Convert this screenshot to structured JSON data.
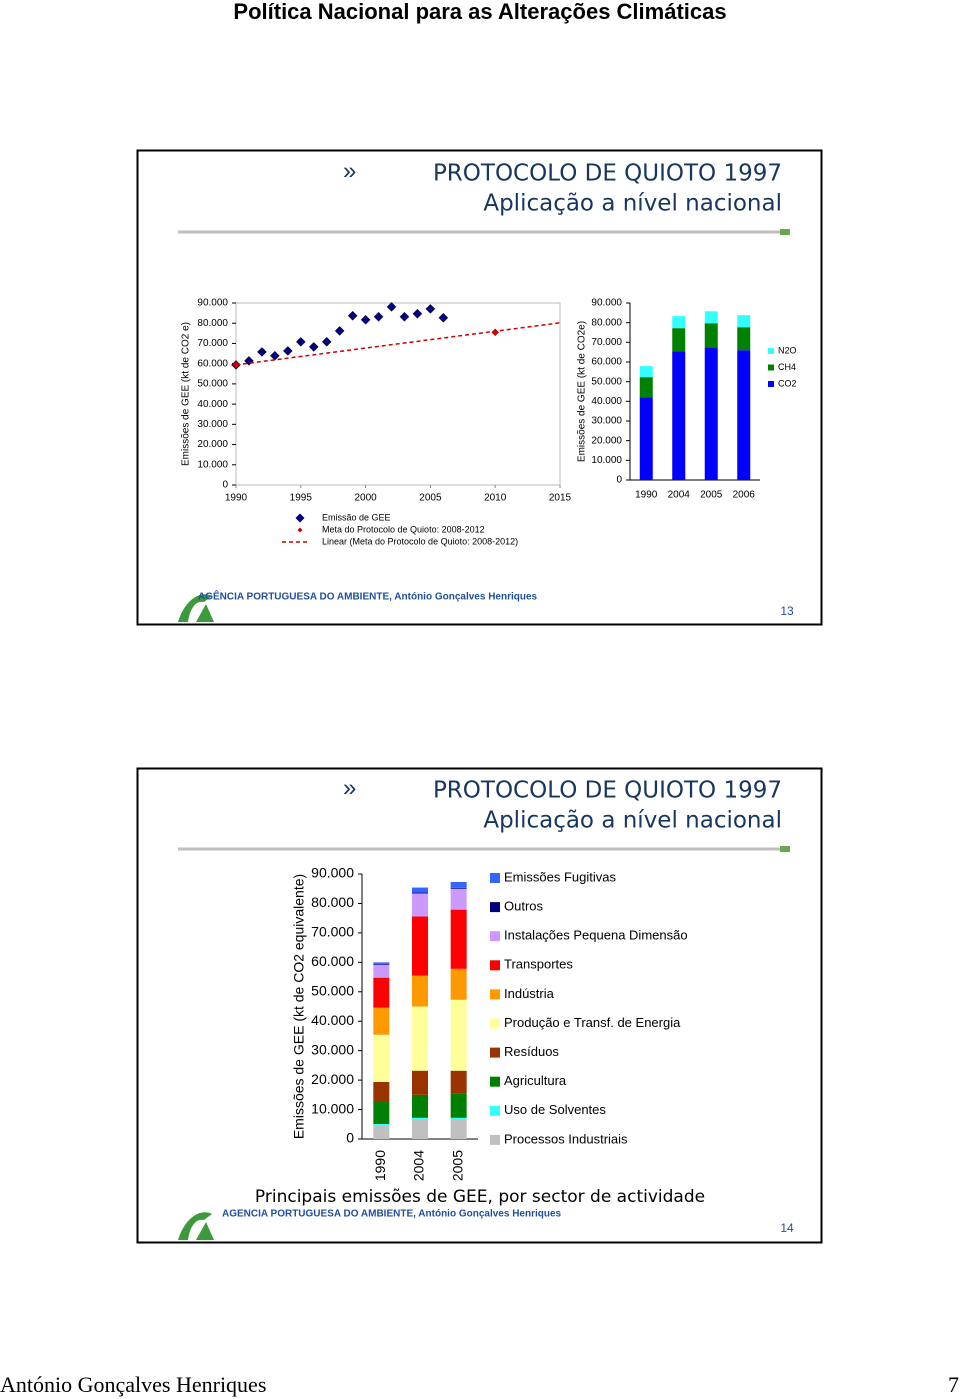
{
  "header": {
    "title": "Política Nacional para as Alterações Climáticas"
  },
  "slides": [
    {
      "title": "PROTOCOLO DE QUIOTO 1997",
      "subtitle": "Aplicação a nível nacional",
      "agency": "AGÊNCIA PORTUGUESA DO AMBIENTE, António Gonçalves Henriques",
      "number": "13"
    },
    {
      "title": "PROTOCOLO DE QUIOTO 1997",
      "subtitle": "Aplicação a nível nacional",
      "caption": "Principais emissões de GEE, por sector de actividade",
      "agency": "AGENCIA PORTUGUESA DO AMBIENTE, António Gonçalves Henriques",
      "number": "14"
    }
  ],
  "chart_data": [
    {
      "type": "scatter",
      "y_label": "Emissões de GEE (kt de CO2 e)",
      "xlim": [
        1990,
        2015
      ],
      "xticks": [
        1990,
        1995,
        2000,
        2005,
        2010,
        2015
      ],
      "ylim": [
        0,
        90000
      ],
      "yticks": [
        0,
        {
          "value": 10000,
          "label": "10.000"
        },
        {
          "value": 20000,
          "label": "20.000"
        },
        {
          "value": 30000,
          "label": "30.000"
        },
        {
          "value": 40000,
          "label": "40.000"
        },
        {
          "value": 50000,
          "label": "50.000"
        },
        {
          "value": 60000,
          "label": "60.000"
        },
        {
          "value": 70000,
          "label": "70.000"
        },
        {
          "value": 80000,
          "label": "80.000"
        },
        {
          "value": 90000,
          "label": "90.000"
        }
      ],
      "grid": false,
      "legend": "bottom",
      "series": [
        {
          "name": "Emissão de GEE",
          "color": "#000080",
          "x": [
            1990,
            1991,
            1992,
            1993,
            1994,
            1995,
            1996,
            1997,
            1998,
            1999,
            2000,
            2001,
            2002,
            2003,
            2004,
            2005,
            2006
          ],
          "values": [
            59400,
            61400,
            65800,
            63900,
            66300,
            70800,
            68300,
            70800,
            76200,
            83700,
            81700,
            83200,
            88100,
            83200,
            84700,
            87100,
            82700
          ]
        },
        {
          "name": "Meta do Protocolo de Quioto: 2008-2012",
          "color": "#cc0000",
          "x": [
            1990,
            2010
          ],
          "values": [
            59400,
            75500
          ]
        },
        {
          "name": "Linear (Meta do Protocolo de Quioto: 2008-2012)",
          "color": "#cc0000",
          "linestyle": "dashed",
          "x": [
            1990,
            2015
          ],
          "values": [
            59400,
            80200
          ]
        }
      ]
    },
    {
      "type": "bar",
      "stacked": true,
      "y_label": "Emissões de GEE (kt de CO2e)",
      "categories": [
        "1990",
        "2004",
        "2005",
        "2006"
      ],
      "ylim": [
        0,
        90000
      ],
      "yticks": [
        0,
        {
          "value": 10000,
          "label": "10.000"
        },
        {
          "value": 20000,
          "label": "20.000"
        },
        {
          "value": 30000,
          "label": "30.000"
        },
        {
          "value": 40000,
          "label": "40.000"
        },
        {
          "value": 50000,
          "label": "50.000"
        },
        {
          "value": 60000,
          "label": "60.000"
        },
        {
          "value": 70000,
          "label": "70.000"
        },
        {
          "value": 80000,
          "label": "80.000"
        },
        {
          "value": 90000,
          "label": "90.000"
        }
      ],
      "grid": false,
      "legend": "right",
      "series": [
        {
          "name": "CO2",
          "color": "#0000ff",
          "values": [
            42100,
            65500,
            67500,
            66000
          ]
        },
        {
          "name": "CH4",
          "color": "#008000",
          "values": [
            10200,
            11700,
            12200,
            11700
          ]
        },
        {
          "name": "N2O",
          "color": "#33ffff",
          "values": [
            5600,
            6100,
            6100,
            6100
          ]
        }
      ]
    },
    {
      "type": "bar",
      "stacked": true,
      "y_label": "Emissões de GEE (kt de CO2 equivalente)",
      "categories": [
        "1990",
        "2004",
        "2005"
      ],
      "ylim": [
        0,
        90000
      ],
      "yticks": [
        0,
        {
          "value": 10000,
          "label": "10.000"
        },
        {
          "value": 20000,
          "label": "20.000"
        },
        {
          "value": 30000,
          "label": "30.000"
        },
        {
          "value": 40000,
          "label": "40.000"
        },
        {
          "value": 50000,
          "label": "50.000"
        },
        {
          "value": 60000,
          "label": "60.000"
        },
        {
          "value": 70000,
          "label": "70.000"
        },
        {
          "value": 80000,
          "label": "80.000"
        },
        {
          "value": 90000,
          "label": "90.000"
        }
      ],
      "grid": false,
      "legend": "right",
      "series": [
        {
          "name": "Processos Industriais",
          "color": "#c0c0c0",
          "values": [
            4400,
            6800,
            6800
          ]
        },
        {
          "name": "Uso de Solventes",
          "color": "#33ffff",
          "values": [
            700,
            400,
            400
          ]
        },
        {
          "name": "Agricultura",
          "color": "#008000",
          "values": [
            7800,
            7800,
            8200
          ]
        },
        {
          "name": "Resíduos",
          "color": "#993300",
          "values": [
            6500,
            8200,
            7800
          ]
        },
        {
          "name": "Produção e Transf. de Energia",
          "color": "#ffff99",
          "values": [
            16000,
            21800,
            24100
          ]
        },
        {
          "name": "Indústria",
          "color": "#ff9900",
          "values": [
            9200,
            10500,
            10500
          ]
        },
        {
          "name": "Transportes",
          "color": "#ff0000",
          "values": [
            10200,
            20100,
            20100
          ]
        },
        {
          "name": "Instalações Pequena Dimensão",
          "color": "#cc99ff",
          "values": [
            4400,
            7800,
            7100
          ]
        },
        {
          "name": "Outros",
          "color": "#000080",
          "values": [
            300,
            300,
            300
          ]
        },
        {
          "name": "Emissões Fugitivas",
          "color": "#3366ff",
          "values": [
            500,
            1700,
            2000
          ]
        }
      ]
    }
  ],
  "footer": {
    "author": "António Gonçalves Henriques",
    "page": "7"
  }
}
